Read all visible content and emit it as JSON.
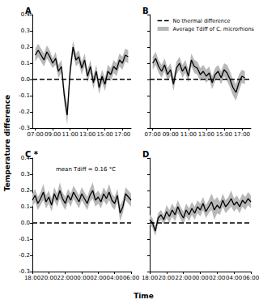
{
  "figure": {
    "y_label": "Temperature difference",
    "x_label": "Time"
  },
  "chart_data": [
    {
      "type": "line",
      "title": "A",
      "x": [
        420,
        440,
        460,
        480,
        500,
        520,
        540,
        560,
        580,
        600,
        620,
        640,
        660,
        680,
        700,
        720,
        740,
        760,
        780,
        800,
        820,
        840,
        860,
        880,
        900,
        920,
        940,
        960,
        980,
        1000,
        1020,
        1040,
        1060
      ],
      "xlim": [
        400,
        1080
      ],
      "xticks": [
        {
          "value": 420,
          "label": "07:00"
        },
        {
          "value": 540,
          "label": "09:00"
        },
        {
          "value": 660,
          "label": "11:00"
        },
        {
          "value": 780,
          "label": "13:00"
        },
        {
          "value": 900,
          "label": "15:00"
        },
        {
          "value": 1020,
          "label": "17:00"
        }
      ],
      "ylim": [
        -0.3,
        0.4
      ],
      "yticks": [
        -0.3,
        -0.2,
        -0.1,
        {
          "value": 0,
          "label": "0.0"
        },
        0.1,
        0.2,
        0.3,
        0.4
      ],
      "reference": {
        "value": 0,
        "color": "#000000",
        "line_style": "dashed"
      },
      "series": [
        {
          "color": "#000000",
          "values": [
            0.15,
            0.18,
            0.15,
            0.12,
            0.17,
            0.14,
            0.1,
            0.13,
            0.05,
            0.08,
            -0.1,
            -0.22,
            0.05,
            0.2,
            0.12,
            0.14,
            0.07,
            0.12,
            0.02,
            0.08,
            -0.02,
            0.05,
            -0.05,
            0.02,
            -0.03,
            0.05,
            0.03,
            0.08,
            0.06,
            0.12,
            0.1,
            0.15,
            0.14
          ],
          "error": [
            0.04,
            0.04,
            0.04,
            0.04,
            0.04,
            0.04,
            0.03,
            0.04,
            0.04,
            0.04,
            0.05,
            0.06,
            0.05,
            0.04,
            0.04,
            0.04,
            0.04,
            0.04,
            0.04,
            0.04,
            0.04,
            0.04,
            0.04,
            0.04,
            0.04,
            0.04,
            0.04,
            0.04,
            0.04,
            0.04,
            0.04,
            0.04,
            0.04
          ]
        }
      ]
    },
    {
      "type": "line",
      "title": "B",
      "x": [
        420,
        440,
        460,
        480,
        500,
        520,
        540,
        560,
        580,
        600,
        620,
        640,
        660,
        680,
        700,
        720,
        740,
        760,
        780,
        800,
        820,
        840,
        860,
        880,
        900,
        920,
        940,
        960,
        980,
        1000,
        1020,
        1040
      ],
      "xlim": [
        400,
        1080
      ],
      "xticks": [
        {
          "value": 420,
          "label": "07:00"
        },
        {
          "value": 540,
          "label": "09:00"
        },
        {
          "value": 660,
          "label": "11:00"
        },
        {
          "value": 780,
          "label": "13:00"
        },
        {
          "value": 900,
          "label": "15:00"
        },
        {
          "value": 1020,
          "label": "17:00"
        }
      ],
      "ylim": [
        -0.3,
        0.4
      ],
      "yticks": [
        -0.3,
        -0.2,
        -0.1,
        {
          "value": 0,
          "label": "0.0"
        },
        0.1,
        0.2,
        0.3,
        0.4
      ],
      "tick_labels": "x",
      "legend": "upper right",
      "reference": {
        "name": "No thermal difference",
        "value": 0,
        "color": "#000000",
        "line_style": "dashed"
      },
      "series": [
        {
          "name": "Average Tdiff of C. microrhions",
          "color": "#000000",
          "values": [
            0.1,
            0.13,
            0.08,
            0.05,
            0.09,
            0.03,
            0.06,
            -0.03,
            0.07,
            0.1,
            0.05,
            0.08,
            0.02,
            0.12,
            0.08,
            0.07,
            0.03,
            0.05,
            0.02,
            0.04,
            -0.02,
            0.03,
            0.05,
            0.01,
            0.06,
            0.04,
            0.0,
            -0.05,
            -0.08,
            -0.02,
            0.02,
            0.01
          ],
          "error": [
            0.04,
            0.04,
            0.04,
            0.04,
            0.04,
            0.04,
            0.04,
            0.04,
            0.04,
            0.04,
            0.04,
            0.04,
            0.04,
            0.04,
            0.04,
            0.04,
            0.04,
            0.04,
            0.04,
            0.04,
            0.04,
            0.04,
            0.04,
            0.04,
            0.04,
            0.05,
            0.05,
            0.05,
            0.05,
            0.05,
            0.04,
            0.04
          ]
        }
      ]
    },
    {
      "type": "line",
      "title": "C *",
      "annotation": "mean Tdiff = 0.16 °C",
      "x": [
        1080,
        1100,
        1120,
        1140,
        1160,
        1180,
        1200,
        1220,
        1240,
        1260,
        1280,
        1300,
        1320,
        1340,
        1360,
        1380,
        1400,
        1420,
        1440,
        1460,
        1480,
        1500,
        1520,
        1540,
        1560,
        1580,
        1600,
        1620,
        1640,
        1660,
        1680,
        1700,
        1720,
        1740,
        1760,
        1780,
        1800
      ],
      "xlim": [
        1080,
        1800
      ],
      "xticks": [
        {
          "value": 1080,
          "label": "18:00"
        },
        {
          "value": 1200,
          "label": "20:00"
        },
        {
          "value": 1320,
          "label": "22:00"
        },
        {
          "value": 1440,
          "label": "00:00"
        },
        {
          "value": 1560,
          "label": "02:00"
        },
        {
          "value": 1680,
          "label": "04:00"
        },
        {
          "value": 1800,
          "label": "06:00"
        }
      ],
      "ylim": [
        -0.3,
        0.4
      ],
      "yticks": [
        -0.3,
        -0.2,
        -0.1,
        {
          "value": 0,
          "label": "0.0"
        },
        0.1,
        0.2,
        0.3,
        0.4
      ],
      "reference": {
        "value": 0,
        "color": "#000000",
        "line_style": "dashed"
      },
      "series": [
        {
          "color": "#000000",
          "values": [
            0.14,
            0.17,
            0.12,
            0.15,
            0.19,
            0.13,
            0.16,
            0.11,
            0.18,
            0.14,
            0.2,
            0.15,
            0.12,
            0.17,
            0.14,
            0.19,
            0.16,
            0.13,
            0.18,
            0.15,
            0.12,
            0.17,
            0.2,
            0.14,
            0.16,
            0.13,
            0.18,
            0.15,
            0.19,
            0.14,
            0.12,
            0.17,
            0.06,
            0.1,
            0.18,
            0.16,
            0.14
          ],
          "error": [
            0.04,
            0.04,
            0.04,
            0.04,
            0.05,
            0.04,
            0.04,
            0.04,
            0.04,
            0.04,
            0.05,
            0.04,
            0.04,
            0.04,
            0.04,
            0.04,
            0.04,
            0.04,
            0.04,
            0.04,
            0.04,
            0.04,
            0.05,
            0.04,
            0.04,
            0.04,
            0.04,
            0.04,
            0.05,
            0.04,
            0.04,
            0.04,
            0.05,
            0.04,
            0.04,
            0.04,
            0.04
          ]
        }
      ]
    },
    {
      "type": "line",
      "title": "D",
      "x": [
        1080,
        1100,
        1120,
        1140,
        1160,
        1180,
        1200,
        1220,
        1240,
        1260,
        1280,
        1300,
        1320,
        1340,
        1360,
        1380,
        1400,
        1420,
        1440,
        1460,
        1480,
        1500,
        1520,
        1540,
        1560,
        1580,
        1600,
        1620,
        1640,
        1660,
        1680,
        1700,
        1720,
        1740,
        1760,
        1780,
        1800
      ],
      "xlim": [
        1080,
        1800
      ],
      "xticks": [
        {
          "value": 1080,
          "label": "18:00"
        },
        {
          "value": 1200,
          "label": "20:00"
        },
        {
          "value": 1320,
          "label": "22:00"
        },
        {
          "value": 1440,
          "label": "00:00"
        },
        {
          "value": 1560,
          "label": "02:00"
        },
        {
          "value": 1680,
          "label": "04:00"
        },
        {
          "value": 1800,
          "label": "06:00"
        }
      ],
      "ylim": [
        -0.3,
        0.4
      ],
      "yticks": [
        -0.3,
        -0.2,
        -0.1,
        {
          "value": 0,
          "label": "0.0"
        },
        0.1,
        0.2,
        0.3,
        0.4
      ],
      "tick_labels": "x",
      "reference": {
        "value": 0,
        "color": "#000000",
        "line_style": "dashed"
      },
      "series": [
        {
          "color": "#000000",
          "values": [
            0.02,
            0.0,
            -0.05,
            0.03,
            0.05,
            0.02,
            0.07,
            0.04,
            0.08,
            0.05,
            0.1,
            0.06,
            0.03,
            0.08,
            0.05,
            0.09,
            0.06,
            0.1,
            0.08,
            0.12,
            0.07,
            0.1,
            0.13,
            0.08,
            0.11,
            0.09,
            0.14,
            0.1,
            0.12,
            0.15,
            0.11,
            0.13,
            0.1,
            0.14,
            0.12,
            0.15,
            0.13
          ],
          "error": [
            0.03,
            0.03,
            0.03,
            0.03,
            0.03,
            0.03,
            0.04,
            0.04,
            0.04,
            0.04,
            0.04,
            0.04,
            0.04,
            0.04,
            0.04,
            0.04,
            0.04,
            0.04,
            0.04,
            0.04,
            0.04,
            0.04,
            0.05,
            0.06,
            0.05,
            0.04,
            0.04,
            0.04,
            0.04,
            0.05,
            0.04,
            0.04,
            0.04,
            0.04,
            0.04,
            0.04,
            0.04
          ]
        }
      ]
    }
  ]
}
